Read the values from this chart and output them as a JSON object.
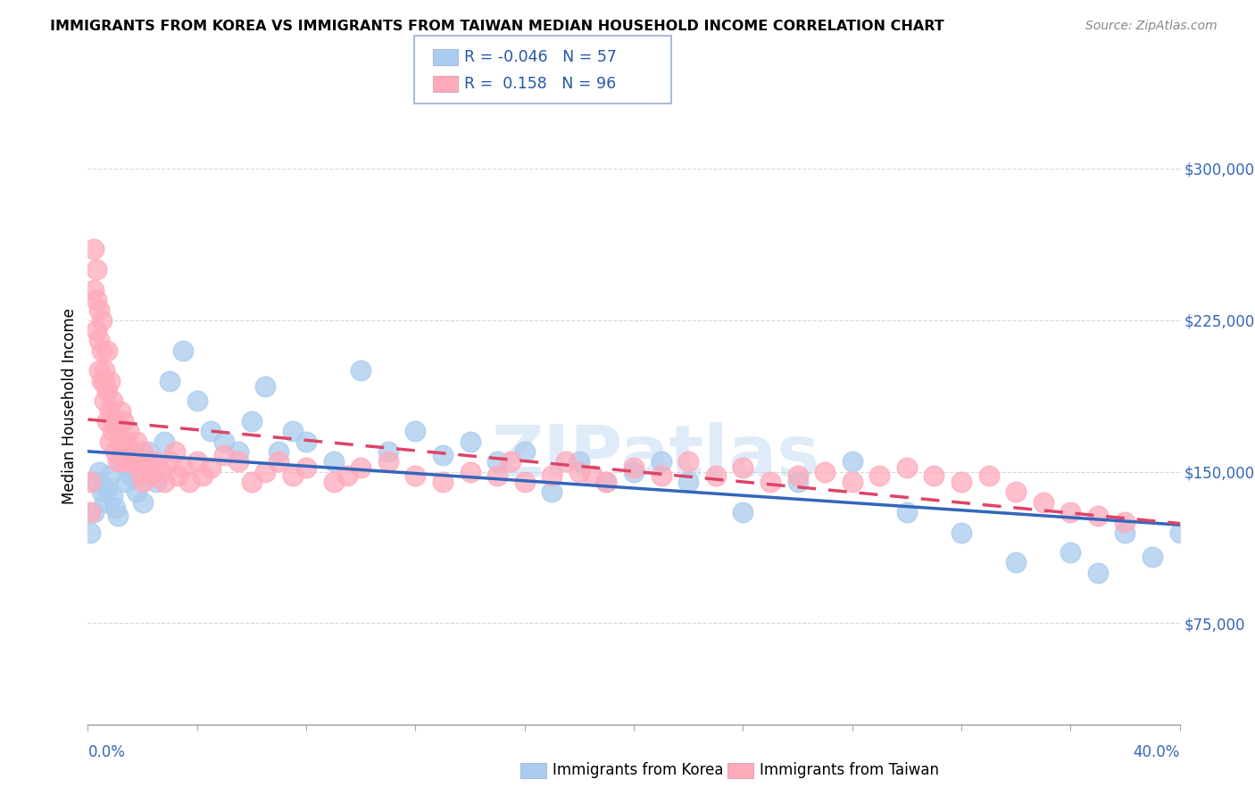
{
  "title": "IMMIGRANTS FROM KOREA VS IMMIGRANTS FROM TAIWAN MEDIAN HOUSEHOLD INCOME CORRELATION CHART",
  "source": "Source: ZipAtlas.com",
  "ylabel": "Median Household Income",
  "legend_1_label": "Immigrants from Korea",
  "legend_1_R": "-0.046",
  "legend_1_N": "57",
  "legend_2_label": "Immigrants from Taiwan",
  "legend_2_R": "0.158",
  "legend_2_N": "96",
  "korea_color": "#aaccee",
  "taiwan_color": "#ffaabb",
  "korea_line_color": "#3366bb",
  "taiwan_line_color": "#dd4466",
  "xmin": 0.0,
  "xmax": 0.4,
  "ymin": 25000,
  "ymax": 340000,
  "yticks": [
    75000,
    150000,
    225000,
    300000
  ],
  "ytick_labels": [
    "$75,000",
    "$150,000",
    "$225,000",
    "$300,000"
  ],
  "korea_x": [
    0.001,
    0.002,
    0.003,
    0.004,
    0.005,
    0.006,
    0.007,
    0.008,
    0.009,
    0.01,
    0.011,
    0.012,
    0.013,
    0.014,
    0.015,
    0.016,
    0.018,
    0.02,
    0.022,
    0.025,
    0.028,
    0.03,
    0.035,
    0.04,
    0.045,
    0.05,
    0.055,
    0.06,
    0.065,
    0.07,
    0.075,
    0.08,
    0.09,
    0.1,
    0.11,
    0.12,
    0.13,
    0.14,
    0.15,
    0.16,
    0.17,
    0.18,
    0.19,
    0.2,
    0.21,
    0.22,
    0.24,
    0.26,
    0.28,
    0.3,
    0.32,
    0.34,
    0.36,
    0.37,
    0.38,
    0.39,
    0.4
  ],
  "korea_y": [
    120000,
    130000,
    145000,
    150000,
    140000,
    135000,
    142000,
    148000,
    138000,
    132000,
    128000,
    155000,
    160000,
    145000,
    152000,
    148000,
    140000,
    135000,
    160000,
    145000,
    165000,
    195000,
    210000,
    185000,
    170000,
    165000,
    160000,
    175000,
    192000,
    160000,
    170000,
    165000,
    155000,
    200000,
    160000,
    170000,
    158000,
    165000,
    155000,
    160000,
    140000,
    155000,
    145000,
    150000,
    155000,
    145000,
    130000,
    145000,
    155000,
    130000,
    120000,
    105000,
    110000,
    100000,
    120000,
    108000,
    120000
  ],
  "taiwan_x": [
    0.001,
    0.001,
    0.002,
    0.002,
    0.003,
    0.003,
    0.003,
    0.004,
    0.004,
    0.004,
    0.005,
    0.005,
    0.005,
    0.006,
    0.006,
    0.006,
    0.007,
    0.007,
    0.007,
    0.008,
    0.008,
    0.008,
    0.009,
    0.009,
    0.01,
    0.01,
    0.011,
    0.011,
    0.012,
    0.012,
    0.013,
    0.013,
    0.014,
    0.014,
    0.015,
    0.015,
    0.016,
    0.017,
    0.018,
    0.019,
    0.02,
    0.02,
    0.022,
    0.023,
    0.025,
    0.027,
    0.028,
    0.03,
    0.032,
    0.033,
    0.035,
    0.037,
    0.04,
    0.042,
    0.045,
    0.05,
    0.055,
    0.06,
    0.065,
    0.07,
    0.075,
    0.08,
    0.09,
    0.095,
    0.1,
    0.11,
    0.12,
    0.13,
    0.14,
    0.15,
    0.155,
    0.16,
    0.17,
    0.175,
    0.18,
    0.185,
    0.19,
    0.2,
    0.21,
    0.22,
    0.23,
    0.24,
    0.25,
    0.26,
    0.27,
    0.28,
    0.29,
    0.3,
    0.31,
    0.32,
    0.33,
    0.34,
    0.35,
    0.36,
    0.37,
    0.38
  ],
  "taiwan_y": [
    130000,
    145000,
    260000,
    240000,
    250000,
    235000,
    220000,
    230000,
    215000,
    200000,
    195000,
    210000,
    225000,
    200000,
    185000,
    195000,
    210000,
    190000,
    175000,
    180000,
    165000,
    195000,
    170000,
    185000,
    175000,
    160000,
    170000,
    155000,
    165000,
    180000,
    160000,
    175000,
    155000,
    165000,
    170000,
    155000,
    160000,
    155000,
    165000,
    150000,
    160000,
    145000,
    155000,
    148000,
    155000,
    150000,
    145000,
    155000,
    160000,
    148000,
    152000,
    145000,
    155000,
    148000,
    152000,
    158000,
    155000,
    145000,
    150000,
    155000,
    148000,
    152000,
    145000,
    148000,
    152000,
    155000,
    148000,
    145000,
    150000,
    148000,
    155000,
    145000,
    148000,
    155000,
    150000,
    148000,
    145000,
    152000,
    148000,
    155000,
    148000,
    152000,
    145000,
    148000,
    150000,
    145000,
    148000,
    152000,
    148000,
    145000,
    148000,
    140000,
    135000,
    130000,
    128000,
    125000
  ]
}
